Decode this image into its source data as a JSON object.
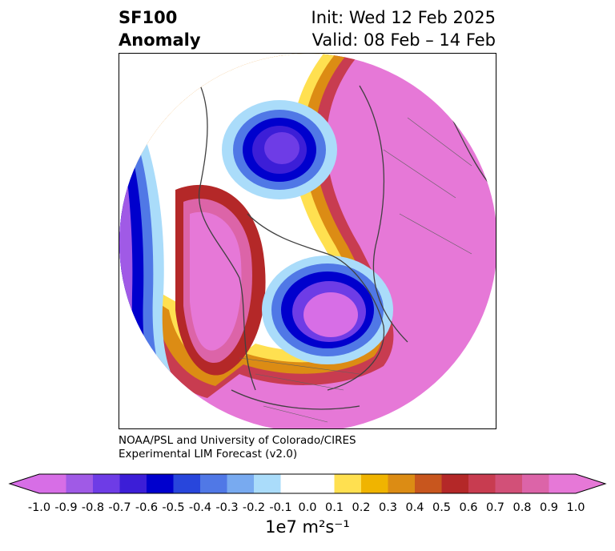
{
  "header": {
    "variable": "SF100",
    "subtitle": "Anomaly",
    "init": "Init: Wed 12 Feb 2025",
    "valid": "Valid: 08 Feb – 14 Feb"
  },
  "credit": {
    "line1": "NOAA/PSL and University of Colorado/CIRES",
    "line2": "Experimental LIM Forecast (v2.0)"
  },
  "colorbar": {
    "unit_label": "1e7 m²s⁻¹",
    "ticks": [
      "-1.0",
      "-0.9",
      "-0.8",
      "-0.7",
      "-0.6",
      "-0.5",
      "-0.4",
      "-0.3",
      "-0.2",
      "-0.1",
      "0.0",
      "0.1",
      "0.2",
      "0.3",
      "0.4",
      "0.5",
      "0.6",
      "0.7",
      "0.8",
      "0.9",
      "1.0"
    ],
    "colors": [
      "#d76ee6",
      "#a05ae6",
      "#6e3ce6",
      "#3c1ed7",
      "#0000cd",
      "#2846dc",
      "#5078e6",
      "#78aaf0",
      "#aadcfa",
      "#ffffff",
      "#ffffff",
      "#ffe050",
      "#f0b400",
      "#dc8c14",
      "#c8561e",
      "#b42828",
      "#c83c50",
      "#d25078",
      "#dc64a8",
      "#e678d7"
    ],
    "under_color": "#d76ee6",
    "over_color": "#e678d7"
  }
}
